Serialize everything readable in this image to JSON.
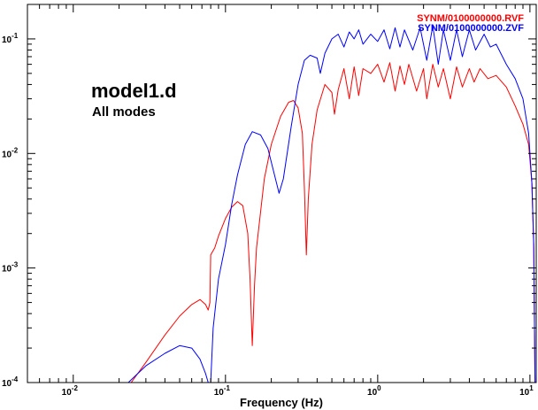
{
  "chart_data": {
    "type": "line",
    "title": "model1.d",
    "subtitle": "All modes",
    "xlabel": "Frequency (Hz)",
    "ylabel": "",
    "x_scale": "log",
    "y_scale": "log",
    "xlim": [
      0.005,
      11
    ],
    "ylim": [
      0.0001,
      0.2
    ],
    "grid": false,
    "legend_position": "top-right",
    "x_ticks": [
      {
        "value": 0.01,
        "base": "10",
        "exp": "-2"
      },
      {
        "value": 0.1,
        "base": "10",
        "exp": "-1"
      },
      {
        "value": 1,
        "base": "10",
        "exp": "0"
      },
      {
        "value": 10,
        "base": "10",
        "exp": "1"
      }
    ],
    "y_ticks": [
      {
        "value": 0.0001,
        "base": "10",
        "exp": "-4"
      },
      {
        "value": 0.001,
        "base": "10",
        "exp": "-3"
      },
      {
        "value": 0.01,
        "base": "10",
        "exp": "-2"
      },
      {
        "value": 0.1,
        "base": "10",
        "exp": "-1"
      }
    ],
    "series": [
      {
        "name": "SYNM/0100000000.RVF",
        "color": "#ff0000",
        "points": [
          [
            0.024,
            0.0001
          ],
          [
            0.03,
            0.00015
          ],
          [
            0.04,
            0.00026
          ],
          [
            0.05,
            0.00038
          ],
          [
            0.06,
            0.00048
          ],
          [
            0.068,
            0.00053
          ],
          [
            0.074,
            0.00048
          ],
          [
            0.077,
            0.00043
          ],
          [
            0.079,
            0.0005
          ],
          [
            0.08,
            0.0013
          ],
          [
            0.085,
            0.0015
          ],
          [
            0.09,
            0.0019
          ],
          [
            0.1,
            0.0027
          ],
          [
            0.11,
            0.0034
          ],
          [
            0.12,
            0.0038
          ],
          [
            0.13,
            0.0035
          ],
          [
            0.14,
            0.002
          ],
          [
            0.145,
            0.0008
          ],
          [
            0.15,
            0.00021
          ],
          [
            0.155,
            0.0007
          ],
          [
            0.16,
            0.0015
          ],
          [
            0.18,
            0.006
          ],
          [
            0.2,
            0.012
          ],
          [
            0.23,
            0.021
          ],
          [
            0.26,
            0.028
          ],
          [
            0.28,
            0.029
          ],
          [
            0.3,
            0.025
          ],
          [
            0.32,
            0.015
          ],
          [
            0.33,
            0.005
          ],
          [
            0.34,
            0.0013
          ],
          [
            0.35,
            0.004
          ],
          [
            0.37,
            0.012
          ],
          [
            0.4,
            0.024
          ],
          [
            0.45,
            0.04
          ],
          [
            0.5,
            0.034
          ],
          [
            0.52,
            0.022
          ],
          [
            0.55,
            0.036
          ],
          [
            0.6,
            0.055
          ],
          [
            0.65,
            0.03
          ],
          [
            0.7,
            0.057
          ],
          [
            0.75,
            0.032
          ],
          [
            0.8,
            0.055
          ],
          [
            0.9,
            0.05
          ],
          [
            1.0,
            0.06
          ],
          [
            1.1,
            0.042
          ],
          [
            1.2,
            0.062
          ],
          [
            1.3,
            0.035
          ],
          [
            1.4,
            0.058
          ],
          [
            1.5,
            0.04
          ],
          [
            1.6,
            0.06
          ],
          [
            1.8,
            0.035
          ],
          [
            2.0,
            0.055
          ],
          [
            2.1,
            0.03
          ],
          [
            2.3,
            0.06
          ],
          [
            2.5,
            0.038
          ],
          [
            2.7,
            0.055
          ],
          [
            3.0,
            0.03
          ],
          [
            3.3,
            0.057
          ],
          [
            3.6,
            0.038
          ],
          [
            4.0,
            0.055
          ],
          [
            4.3,
            0.042
          ],
          [
            4.7,
            0.055
          ],
          [
            5.3,
            0.045
          ],
          [
            6.0,
            0.048
          ],
          [
            7.0,
            0.038
          ],
          [
            8.0,
            0.026
          ],
          [
            9.0,
            0.018
          ],
          [
            9.8,
            0.012
          ],
          [
            10.3,
            0.0055
          ],
          [
            10.6,
            0.0015
          ],
          [
            10.8,
            0.0001
          ]
        ]
      },
      {
        "name": "SYNM/0100000000.ZVF",
        "color": "#0000ff",
        "points": [
          [
            0.023,
            0.0001
          ],
          [
            0.03,
            0.00014
          ],
          [
            0.04,
            0.00018
          ],
          [
            0.05,
            0.00021
          ],
          [
            0.06,
            0.0002
          ],
          [
            0.068,
            0.00016
          ],
          [
            0.074,
            0.00012
          ],
          [
            0.077,
            0.0001
          ],
          [
            0.08,
            0.0001
          ],
          [
            0.083,
            0.0003
          ],
          [
            0.09,
            0.0008
          ],
          [
            0.1,
            0.0016
          ],
          [
            0.11,
            0.0036
          ],
          [
            0.12,
            0.0065
          ],
          [
            0.135,
            0.012
          ],
          [
            0.15,
            0.0155
          ],
          [
            0.17,
            0.0145
          ],
          [
            0.19,
            0.011
          ],
          [
            0.21,
            0.0065
          ],
          [
            0.225,
            0.0045
          ],
          [
            0.24,
            0.006
          ],
          [
            0.27,
            0.017
          ],
          [
            0.3,
            0.04
          ],
          [
            0.33,
            0.065
          ],
          [
            0.36,
            0.072
          ],
          [
            0.4,
            0.068
          ],
          [
            0.42,
            0.05
          ],
          [
            0.45,
            0.075
          ],
          [
            0.5,
            0.1
          ],
          [
            0.55,
            0.11
          ],
          [
            0.6,
            0.085
          ],
          [
            0.65,
            0.115
          ],
          [
            0.7,
            0.1
          ],
          [
            0.75,
            0.12
          ],
          [
            0.8,
            0.09
          ],
          [
            0.9,
            0.11
          ],
          [
            1.0,
            0.095
          ],
          [
            1.1,
            0.12
          ],
          [
            1.2,
            0.082
          ],
          [
            1.3,
            0.125
          ],
          [
            1.4,
            0.085
          ],
          [
            1.5,
            0.12
          ],
          [
            1.7,
            0.08
          ],
          [
            1.9,
            0.125
          ],
          [
            2.1,
            0.065
          ],
          [
            2.3,
            0.13
          ],
          [
            2.5,
            0.06
          ],
          [
            2.7,
            0.12
          ],
          [
            3.0,
            0.065
          ],
          [
            3.3,
            0.12
          ],
          [
            3.6,
            0.07
          ],
          [
            4.0,
            0.12
          ],
          [
            4.4,
            0.08
          ],
          [
            5.0,
            0.11
          ],
          [
            5.5,
            0.085
          ],
          [
            6.0,
            0.09
          ],
          [
            7.0,
            0.06
          ],
          [
            8.0,
            0.045
          ],
          [
            9.0,
            0.03
          ],
          [
            9.8,
            0.015
          ],
          [
            10.3,
            0.0055
          ],
          [
            10.6,
            0.0016
          ],
          [
            10.8,
            0.0001
          ]
        ]
      }
    ]
  }
}
